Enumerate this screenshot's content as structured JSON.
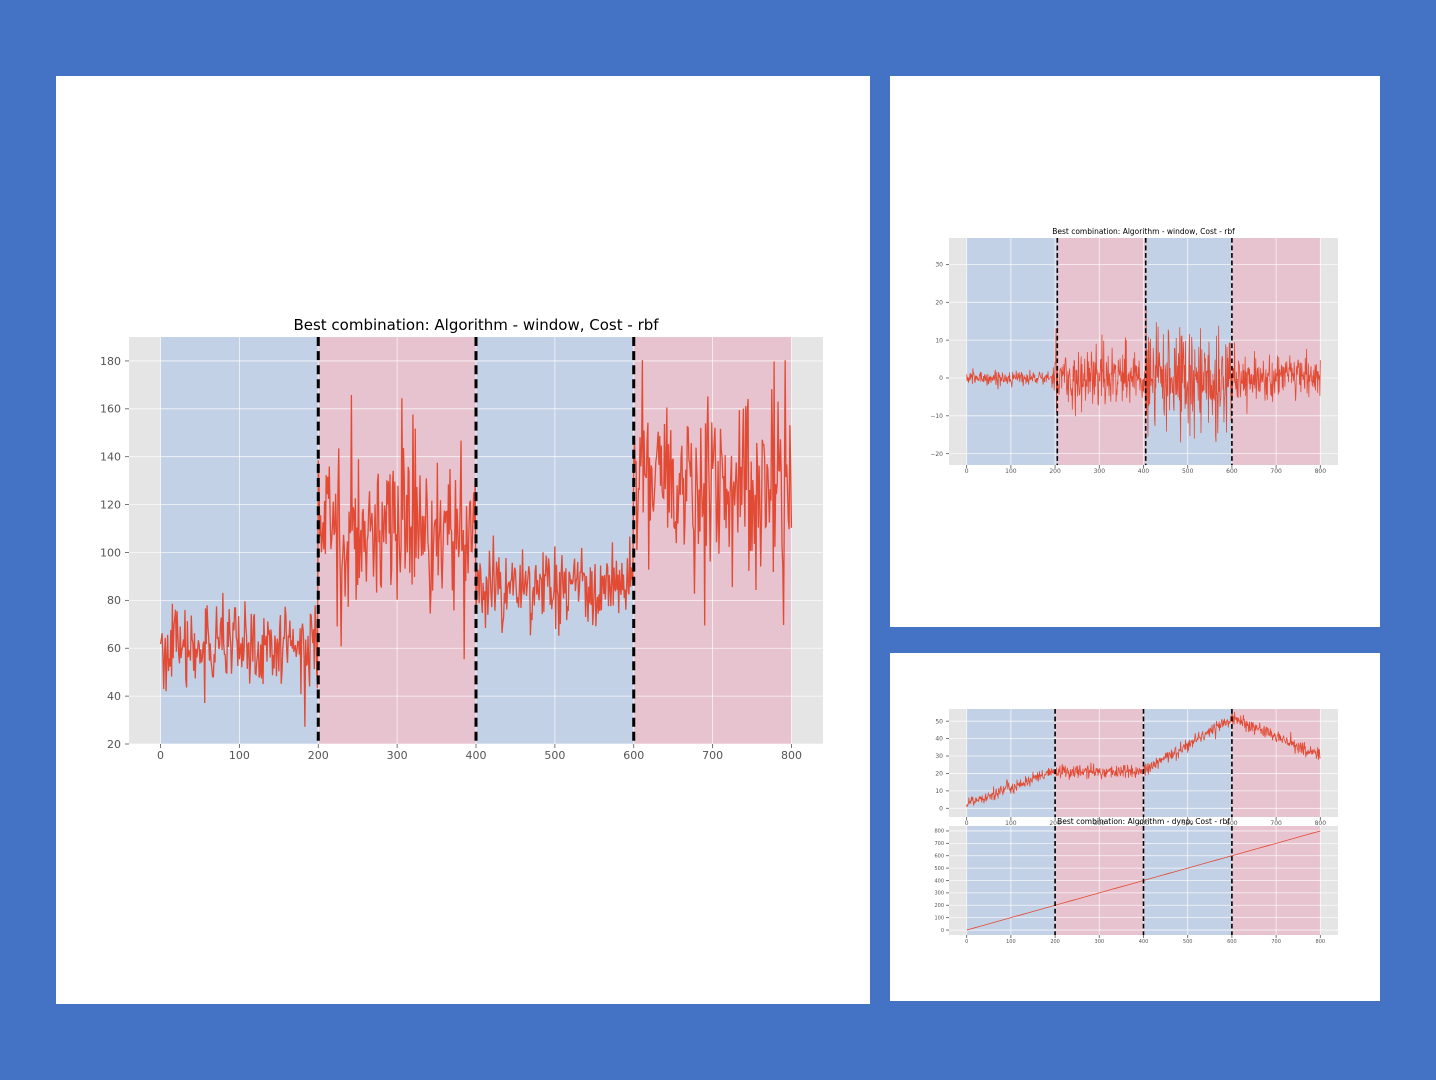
{
  "colors": {
    "background": "#4472c4",
    "panel": "#ffffff",
    "plot_area": "#e5e5e5",
    "grid": "#ffffff",
    "line": "#e24a33",
    "segment_blue": "#c3d1e6",
    "segment_red": "#e6c3ce",
    "breakpoint": "#000000"
  },
  "chart_data": [
    {
      "type": "line",
      "title": "Best combination: Algorithm - window, Cost - rbf",
      "xlabel": "",
      "ylabel": "",
      "xlim": [
        -40,
        840
      ],
      "ylim": [
        20,
        190
      ],
      "xticks": [
        0,
        100,
        200,
        300,
        400,
        500,
        600,
        700,
        800
      ],
      "yticks": [
        20,
        40,
        60,
        80,
        100,
        120,
        140,
        160,
        180
      ],
      "grid": true,
      "segments": [
        [
          0,
          200,
          "blue"
        ],
        [
          200,
          400,
          "red"
        ],
        [
          400,
          600,
          "blue"
        ],
        [
          600,
          800,
          "red"
        ]
      ],
      "breakpoints": [
        200,
        400,
        600
      ],
      "signal": {
        "n": 800,
        "levels": [
          60,
          110,
          85,
          130
        ],
        "noise": [
          8,
          16,
          8,
          18
        ]
      }
    },
    {
      "type": "line",
      "title": "Best combination: Algorithm - window, Cost - rbf",
      "xlabel": "",
      "ylabel": "",
      "xlim": [
        -40,
        840
      ],
      "ylim": [
        -23,
        37
      ],
      "xticks": [
        0,
        100,
        200,
        300,
        400,
        500,
        600,
        700,
        800
      ],
      "yticks": [
        -20,
        -10,
        0,
        10,
        20,
        30
      ],
      "grid": true,
      "segments": [
        [
          0,
          205,
          "blue"
        ],
        [
          205,
          405,
          "red"
        ],
        [
          405,
          600,
          "blue"
        ],
        [
          600,
          800,
          "red"
        ]
      ],
      "breakpoints": [
        205,
        405,
        600
      ],
      "signal": {
        "n": 800,
        "levels": [
          0,
          0,
          0,
          0
        ],
        "noise": [
          1,
          4,
          7,
          3
        ]
      }
    },
    {
      "type": "line",
      "title": "",
      "xlabel": "",
      "ylabel": "",
      "xlim": [
        -40,
        840
      ],
      "ylim": [
        -5,
        57
      ],
      "xticks": [
        0,
        100,
        200,
        300,
        400,
        500,
        600,
        700,
        800
      ],
      "yticks": [
        0,
        10,
        20,
        30,
        40,
        50
      ],
      "grid": true,
      "segments": [
        [
          0,
          200,
          "blue"
        ],
        [
          200,
          400,
          "red"
        ],
        [
          400,
          600,
          "blue"
        ],
        [
          600,
          800,
          "red"
        ]
      ],
      "breakpoints": [
        200,
        400,
        600
      ],
      "signal": {
        "n": 800,
        "trend": [
          [
            0,
            3
          ],
          [
            200,
            21
          ],
          [
            400,
            21
          ],
          [
            600,
            52
          ],
          [
            800,
            30
          ]
        ],
        "noise": [
          2,
          2,
          2,
          2
        ]
      }
    },
    {
      "type": "line",
      "title": "Best combination: Algorithm - dynp, Cost - rbf",
      "xlabel": "",
      "ylabel": "",
      "xlim": [
        -40,
        840
      ],
      "ylim": [
        -40,
        840
      ],
      "xticks": [
        0,
        100,
        200,
        300,
        400,
        500,
        600,
        700,
        800
      ],
      "yticks": [
        0,
        100,
        200,
        300,
        400,
        500,
        600,
        700,
        800
      ],
      "grid": true,
      "segments": [
        [
          0,
          200,
          "blue"
        ],
        [
          200,
          400,
          "red"
        ],
        [
          400,
          600,
          "blue"
        ],
        [
          600,
          800,
          "red"
        ]
      ],
      "breakpoints": [
        200,
        400,
        600
      ],
      "signal": {
        "n": 800,
        "trend": [
          [
            0,
            0
          ],
          [
            800,
            800
          ]
        ],
        "noise": [
          0,
          0,
          0,
          0
        ]
      }
    }
  ]
}
